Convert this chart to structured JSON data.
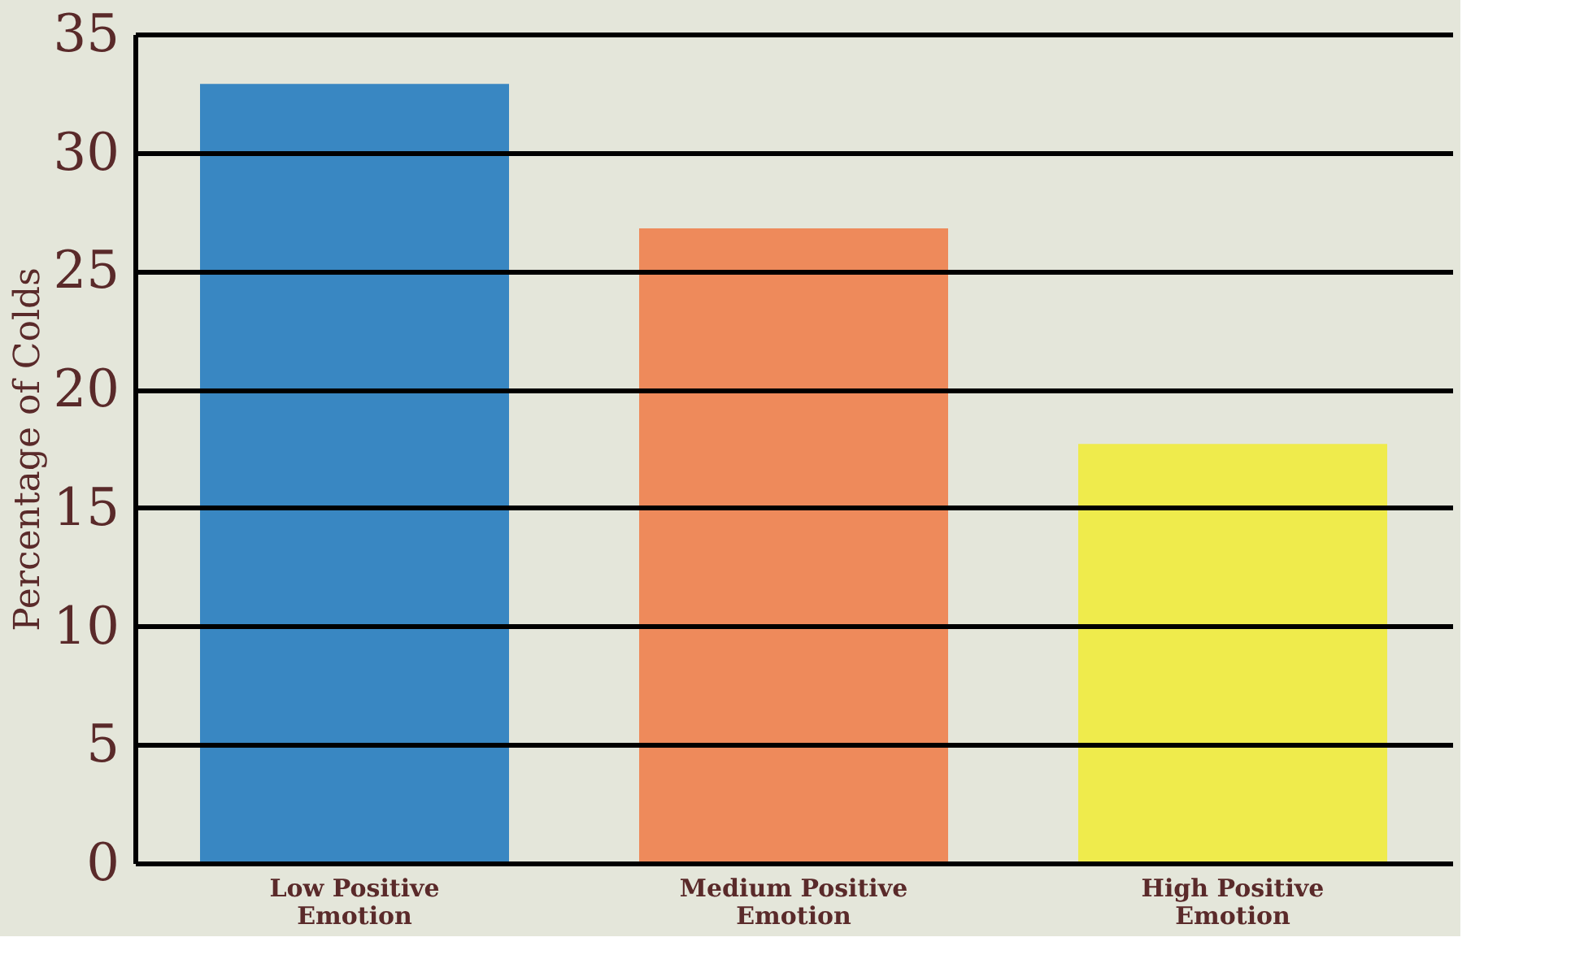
{
  "chart_data": {
    "type": "bar",
    "ylabel": "Percentage of Colds",
    "categories": [
      "Low Positive Emotion",
      "Medium Positive Emotion",
      "High Positive Emotion"
    ],
    "values": [
      32.9,
      26.8,
      17.7
    ],
    "colors": [
      "#2a7fc0",
      "#ef8250",
      "#f0ec40"
    ],
    "ylim": [
      0,
      35
    ],
    "yticks": [
      0,
      5,
      10,
      15,
      20,
      25,
      30,
      35
    ],
    "grid": "y"
  }
}
